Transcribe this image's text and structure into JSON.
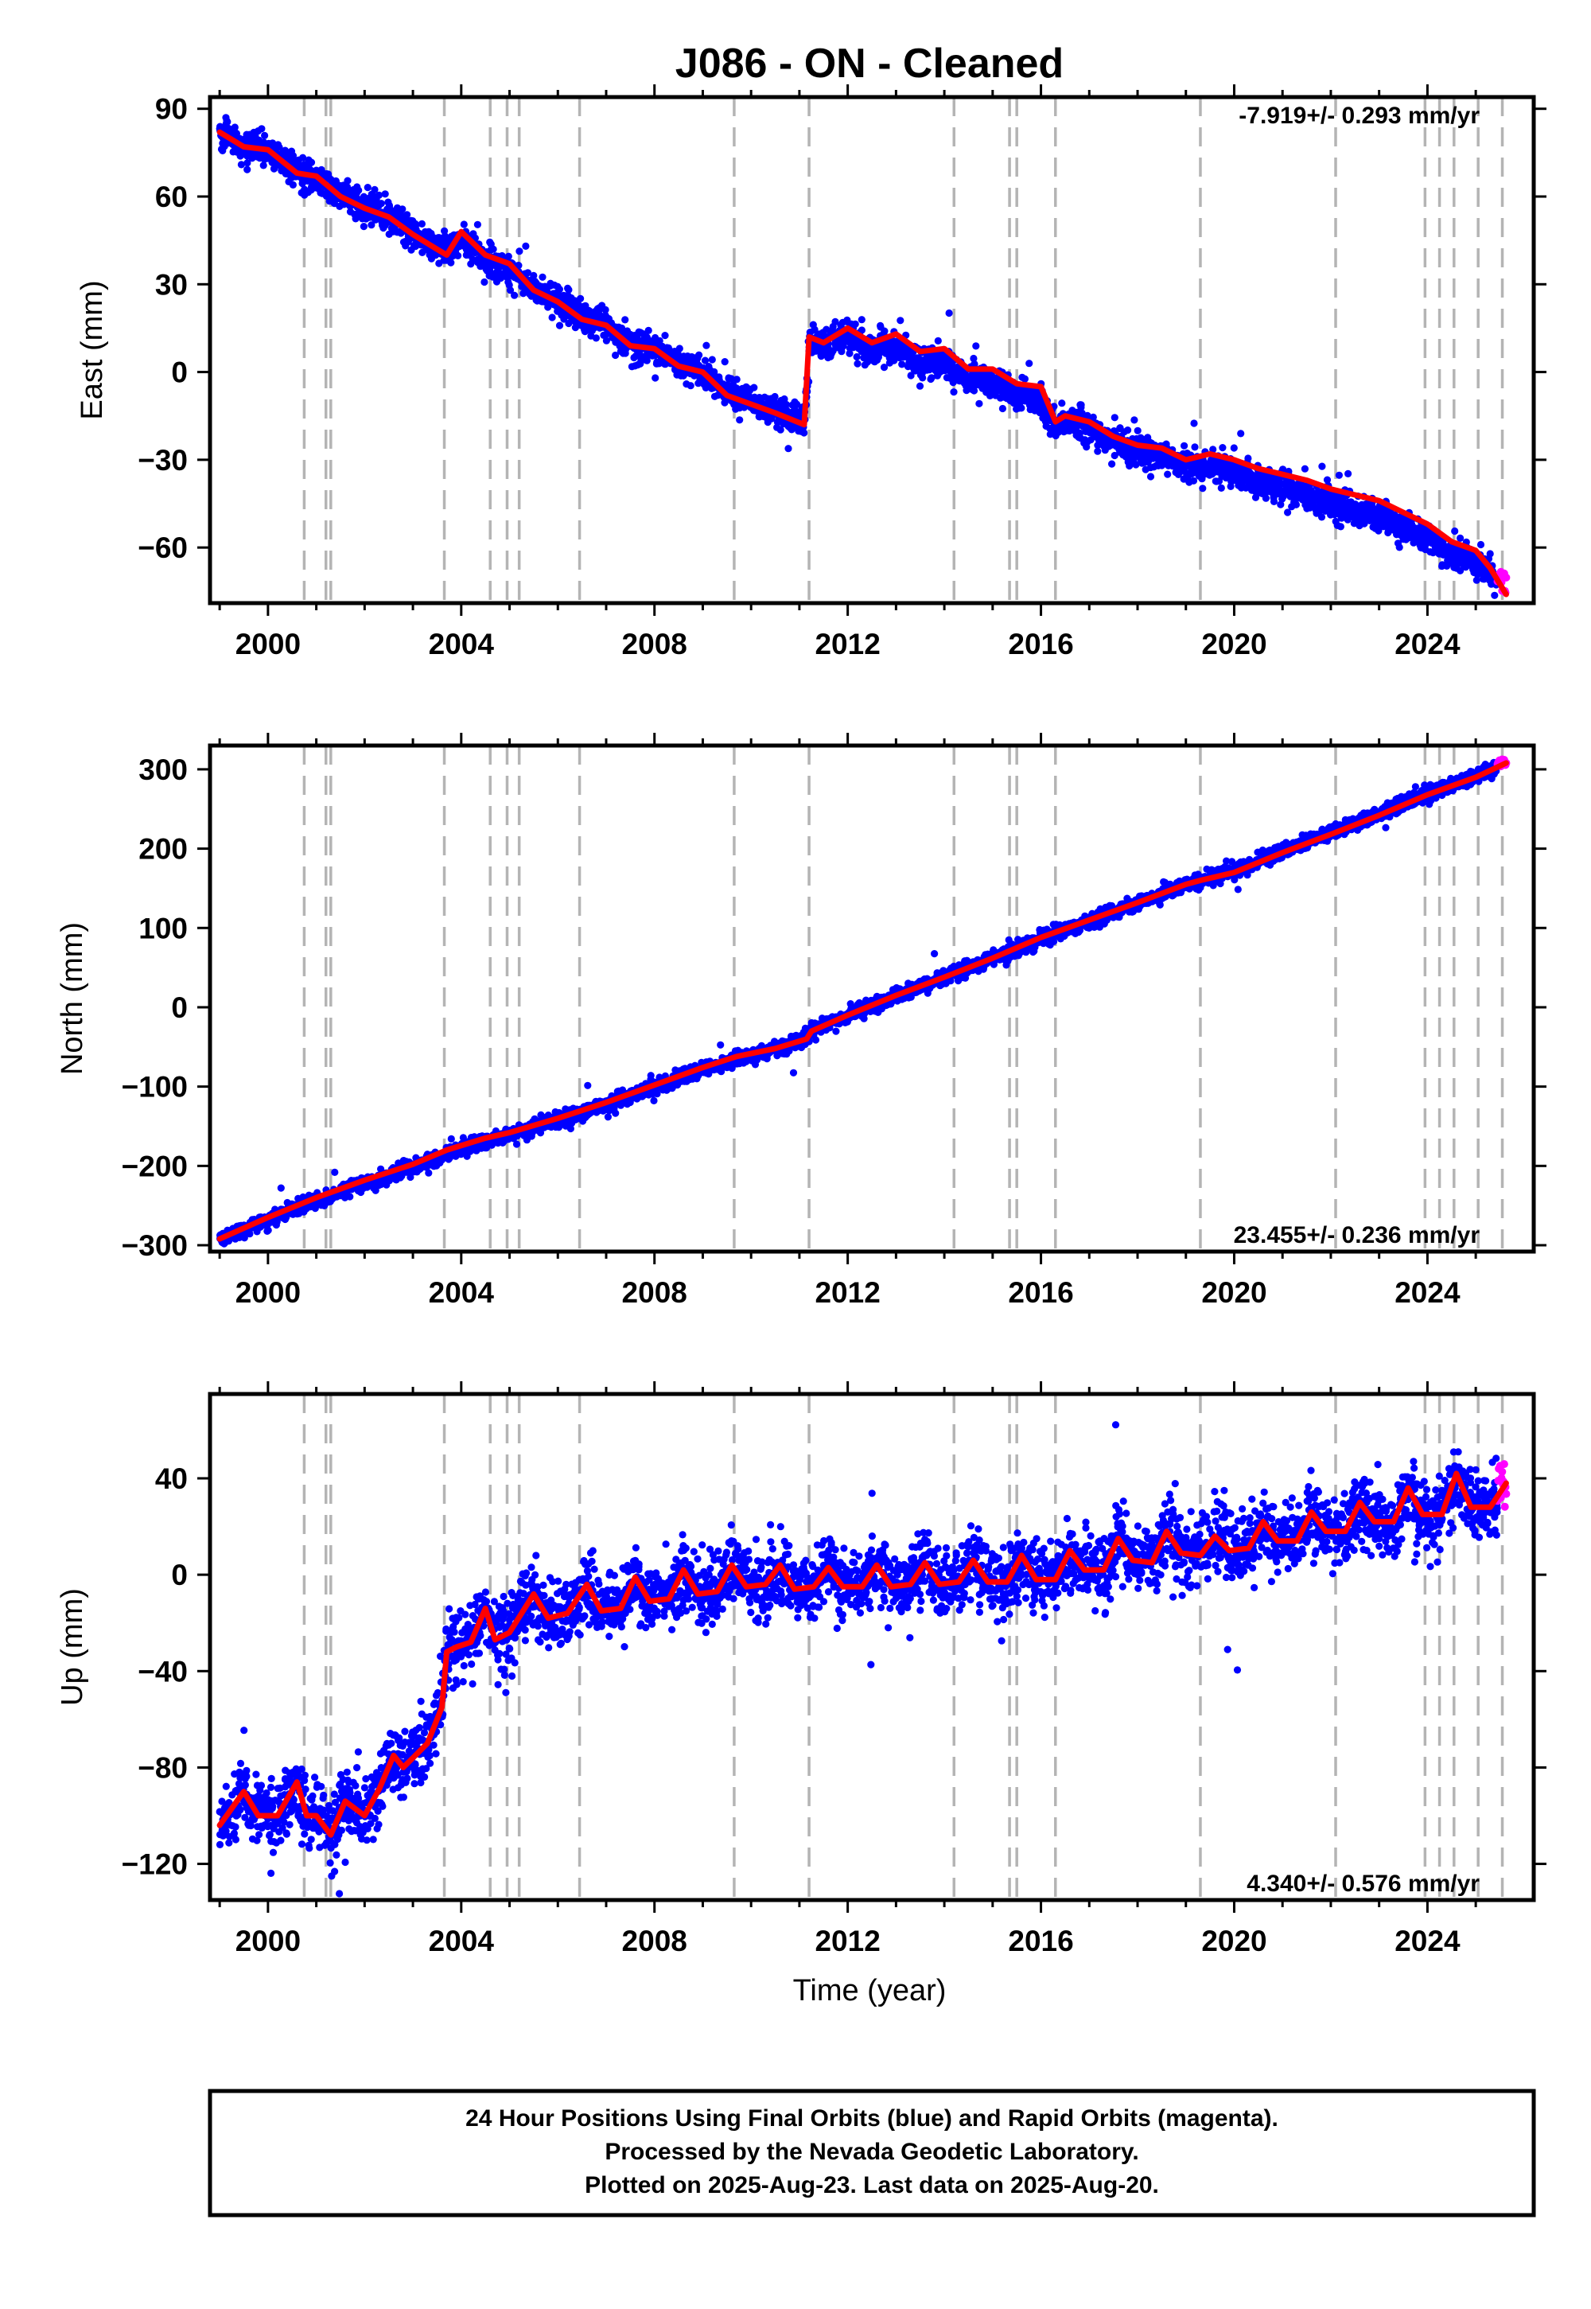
{
  "title": "J086  - ON - Cleaned",
  "colors": {
    "final_orbits": "#0000ff",
    "rapid_orbits": "#ff00ff",
    "model_fit": "#ff0000",
    "event_lines": "#b4b4b4"
  },
  "chart_data": [
    {
      "type": "scatter",
      "id": "east",
      "ylabel": "East (mm)",
      "xlabel": "",
      "xlim": [
        1998.8,
        2026.2
      ],
      "ylim": [
        -79,
        94
      ],
      "xticks": [
        2000,
        2004,
        2008,
        2012,
        2016,
        2020,
        2024
      ],
      "yticks": [
        -60,
        -30,
        0,
        30,
        60,
        90
      ],
      "rate_label": "-7.919+/- 0.293 mm/yr",
      "rate_label_position": "top-right",
      "noise_mm": 2.6,
      "trend_segments": [
        {
          "from": 1999.0,
          "to": 2011.18,
          "y_start": 82,
          "y_end": -17.5
        },
        {
          "from": 2011.18,
          "to": 2025.63,
          "y_start": 11.5,
          "y_end": -76
        }
      ],
      "model": {
        "x": [
          1999.0,
          1999.5,
          2000.0,
          2000.6,
          2001.0,
          2001.5,
          2002.0,
          2002.5,
          2003.0,
          2003.5,
          2003.7,
          2004.0,
          2004.5,
          2005.0,
          2005.5,
          2006.0,
          2006.5,
          2007.0,
          2007.5,
          2008.0,
          2008.5,
          2009.0,
          2009.5,
          2010.0,
          2010.5,
          2011.1,
          2011.2,
          2011.5,
          2012.0,
          2012.5,
          2013.0,
          2013.5,
          2014.0,
          2014.5,
          2015.0,
          2015.5,
          2016.0,
          2016.3,
          2016.5,
          2017.0,
          2017.5,
          2018.0,
          2018.5,
          2019.0,
          2019.5,
          2020.0,
          2020.5,
          2021.0,
          2021.5,
          2022.0,
          2022.5,
          2023.0,
          2023.5,
          2024.0,
          2024.5,
          2025.0,
          2025.3,
          2025.63
        ],
        "y": [
          82,
          77,
          76,
          68,
          67,
          60,
          56,
          53,
          47,
          42,
          40,
          48,
          40,
          37,
          28,
          24,
          18,
          16,
          9,
          8,
          2,
          0,
          -8,
          -11,
          -14,
          -18,
          12,
          10,
          15,
          10,
          13,
          7,
          8,
          1,
          1,
          -4,
          -5,
          -17,
          -15,
          -17,
          -22,
          -25,
          -26,
          -30,
          -28,
          -30,
          -33,
          -35,
          -37,
          -40,
          -42,
          -44,
          -48,
          -52,
          -58,
          -61,
          -67,
          -76
        ]
      },
      "rapid_orbits": {
        "x_range": [
          2025.45,
          2025.63
        ],
        "y_range": [
          -76,
          -68
        ]
      },
      "event_lines": [
        2000.75,
        2001.2,
        2001.3,
        2003.65,
        2004.6,
        2004.95,
        2005.2,
        2006.45,
        2009.65,
        2011.2,
        2014.2,
        2015.35,
        2015.5,
        2016.3,
        2019.3,
        2022.1,
        2023.95,
        2024.25,
        2024.55,
        2025.05,
        2025.55
      ]
    },
    {
      "type": "scatter",
      "id": "north",
      "ylabel": "North (mm)",
      "xlabel": "",
      "xlim": [
        1998.8,
        2026.2
      ],
      "ylim": [
        -308,
        330
      ],
      "xticks": [
        2000,
        2004,
        2008,
        2012,
        2016,
        2020,
        2024
      ],
      "yticks": [
        -300,
        -200,
        -100,
        0,
        100,
        200,
        300
      ],
      "rate_label": "23.455+/- 0.236 mm/yr",
      "rate_label_position": "bottom-right",
      "noise_mm": 4.5,
      "trend_segments": [
        {
          "from": 1999.0,
          "to": 2011.18,
          "y_start": -292,
          "y_end": -40
        },
        {
          "from": 2011.18,
          "to": 2025.63,
          "y_start": -30,
          "y_end": 308
        }
      ],
      "model": {
        "x": [
          1999.0,
          2000.0,
          2001.0,
          2002.0,
          2003.0,
          2003.7,
          2004.5,
          2005.0,
          2006.0,
          2007.0,
          2008.0,
          2009.0,
          2009.7,
          2010.5,
          2011.15,
          2011.25,
          2012.0,
          2013.0,
          2014.0,
          2015.0,
          2016.0,
          2017.0,
          2018.0,
          2019.0,
          2019.3,
          2020.0,
          2021.0,
          2022.0,
          2023.0,
          2024.0,
          2025.0,
          2025.63
        ],
        "y": [
          -292,
          -265,
          -240,
          -218,
          -198,
          -180,
          -165,
          -158,
          -140,
          -120,
          -98,
          -76,
          -62,
          -52,
          -40,
          -30,
          -10,
          15,
          38,
          62,
          88,
          110,
          132,
          155,
          160,
          170,
          195,
          218,
          242,
          268,
          290,
          308
        ]
      },
      "rapid_orbits": {
        "x_range": [
          2025.45,
          2025.63
        ],
        "y_range": [
          303,
          313
        ]
      },
      "event_lines": [
        2000.75,
        2001.2,
        2001.3,
        2003.65,
        2004.6,
        2004.95,
        2005.2,
        2006.45,
        2009.65,
        2011.2,
        2014.2,
        2015.35,
        2015.5,
        2016.3,
        2019.3,
        2022.1,
        2023.95,
        2024.25,
        2024.55,
        2025.05,
        2025.55
      ]
    },
    {
      "type": "scatter",
      "id": "up",
      "ylabel": "Up (mm)",
      "xlabel": "Time (year)",
      "xlim": [
        1998.8,
        2026.2
      ],
      "ylim": [
        -135,
        75
      ],
      "xticks": [
        2000,
        2004,
        2008,
        2012,
        2016,
        2020,
        2024
      ],
      "yticks": [
        -120,
        -80,
        -40,
        0,
        40
      ],
      "rate_label": "4.340+/- 0.576 mm/yr",
      "rate_label_position": "bottom-right",
      "noise_mm": 7,
      "observation_ranges": [
        {
          "from": 1999.0,
          "to": 2003.6,
          "base_start": -98,
          "base_end": -98,
          "seasonal_amp": 6
        },
        {
          "from": 2003.6,
          "to": 2025.63,
          "base_start": -22,
          "base_end": 30,
          "seasonal_amp": 8
        }
      ],
      "model": {
        "x": [
          1999.0,
          1999.5,
          1999.8,
          2000.2,
          2000.6,
          2000.8,
          2001.0,
          2001.3,
          2001.6,
          2002.0,
          2002.3,
          2002.6,
          2002.8,
          2003.0,
          2003.3,
          2003.6,
          2003.7,
          2003.9,
          2004.2,
          2004.5,
          2004.7,
          2005.0,
          2005.5,
          2005.8,
          2006.2,
          2006.6,
          2006.9,
          2007.3,
          2007.6,
          2007.9,
          2008.3,
          2008.6,
          2008.9,
          2009.3,
          2009.6,
          2009.9,
          2010.3,
          2010.6,
          2010.9,
          2011.3,
          2011.6,
          2011.9,
          2012.3,
          2012.6,
          2012.9,
          2013.3,
          2013.6,
          2013.9,
          2014.3,
          2014.6,
          2014.9,
          2015.3,
          2015.6,
          2015.9,
          2016.3,
          2016.6,
          2016.9,
          2017.3,
          2017.6,
          2017.9,
          2018.3,
          2018.6,
          2018.9,
          2019.3,
          2019.6,
          2019.9,
          2020.3,
          2020.6,
          2020.9,
          2021.3,
          2021.6,
          2021.9,
          2022.3,
          2022.6,
          2022.9,
          2023.3,
          2023.6,
          2023.9,
          2024.3,
          2024.6,
          2024.9,
          2025.3,
          2025.63
        ],
        "y": [
          -104,
          -90,
          -100,
          -100,
          -86,
          -100,
          -100,
          -108,
          -94,
          -100,
          -89,
          -75,
          -80,
          -76,
          -70,
          -55,
          -32,
          -30,
          -28,
          -14,
          -27,
          -24,
          -8,
          -18,
          -16,
          -4,
          -15,
          -14,
          -1,
          -11,
          -10,
          2,
          -8,
          -7,
          4,
          -5,
          -4,
          4,
          -6,
          -5,
          3,
          -5,
          -5,
          4,
          -5,
          -4,
          5,
          -4,
          -3,
          6,
          -3,
          -3,
          8,
          -2,
          -2,
          10,
          2,
          2,
          15,
          6,
          5,
          18,
          9,
          8,
          16,
          10,
          11,
          22,
          14,
          14,
          26,
          18,
          18,
          30,
          22,
          22,
          36,
          25,
          25,
          42,
          28,
          28,
          38
        ]
      },
      "rapid_orbits": {
        "x_range": [
          2025.45,
          2025.63
        ],
        "y_range": [
          28,
          48
        ]
      },
      "event_lines": [
        2000.75,
        2001.2,
        2001.3,
        2003.65,
        2004.6,
        2004.95,
        2005.2,
        2006.45,
        2009.65,
        2011.2,
        2014.2,
        2015.35,
        2015.5,
        2016.3,
        2019.3,
        2022.1,
        2023.95,
        2024.25,
        2024.55,
        2025.05,
        2025.55
      ]
    }
  ],
  "footer": {
    "line1": "24 Hour Positions Using Final Orbits (blue) and Rapid Orbits (magenta).",
    "line2": "Processed by the Nevada Geodetic Laboratory.",
    "line3": "Plotted on 2025-Aug-23. Last data on 2025-Aug-20."
  }
}
